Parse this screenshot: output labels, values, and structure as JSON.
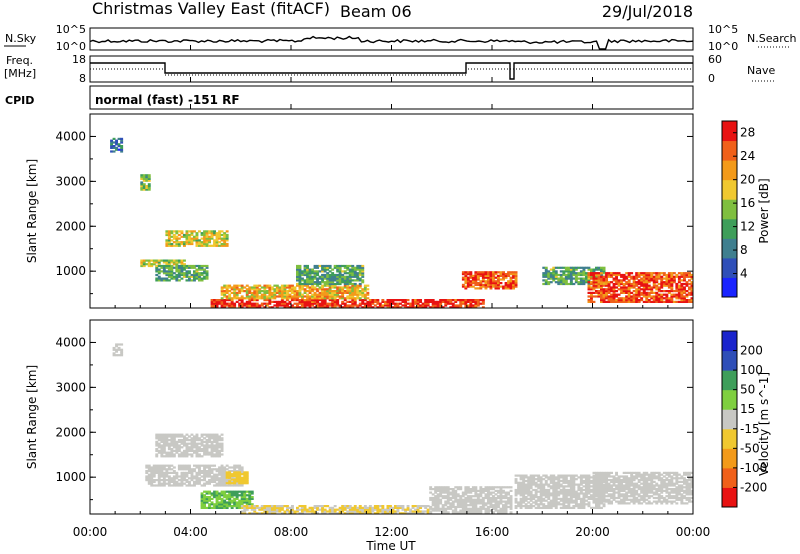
{
  "header": {
    "station": "Christmas Valley East (fitACF)",
    "beam": "Beam 06",
    "date": "29/Jul/2018"
  },
  "nsky": {
    "label": "N.Sky",
    "tick_top": "10^5",
    "tick_bottom": "10^0",
    "right_label": "N.Search",
    "right_tick_top": "10^5",
    "right_tick_bottom": "10^0"
  },
  "freq": {
    "label_top": "Freq.",
    "label_bottom": "[MHz]",
    "tick_top": "18",
    "tick_bottom": "8",
    "right_label": "Nave",
    "right_tick_top": "60",
    "right_tick_bottom": "0"
  },
  "cpid": {
    "label": "CPID",
    "mode": "normal (fast) -151 RF"
  },
  "xaxis": {
    "label": "Time UT",
    "ticks": [
      "00:00",
      "04:00",
      "08:00",
      "12:00",
      "16:00",
      "20:00",
      "00:00"
    ]
  },
  "colors": {
    "power": [
      "#1a24ff",
      "#2f4fb8",
      "#3f7f8f",
      "#3e9e5a",
      "#7fbf3f",
      "#f0c830",
      "#f39a1a",
      "#f0601a",
      "#e81212"
    ],
    "velocity": [
      "#e81212",
      "#f0601a",
      "#f39a1a",
      "#f0c830",
      "#c8c8c4",
      "#7fcf3f",
      "#3e9e5a",
      "#2f4fb8",
      "#1a24cc"
    ]
  },
  "chart_data": [
    {
      "type": "heatmap",
      "panel": "power",
      "ylabel": "Slant Range [km]",
      "xlabel": "",
      "yticks": [
        "1000",
        "2000",
        "3000",
        "4000"
      ],
      "ylim": [
        180,
        4500
      ],
      "xlim": [
        0,
        24
      ],
      "colorbar": {
        "label": "Power [dB]",
        "ticks": [
          "4",
          "8",
          "12",
          "16",
          "20",
          "24",
          "28"
        ],
        "range": [
          0,
          30
        ]
      },
      "patches": [
        {
          "t0": 2.0,
          "t1": 3.8,
          "r0": 1100,
          "r1": 1250,
          "level": 16
        },
        {
          "t0": 2.6,
          "t1": 4.6,
          "r0": 780,
          "r1": 1120,
          "level": 12
        },
        {
          "t0": 3.0,
          "t1": 5.4,
          "r0": 1550,
          "r1": 1900,
          "level": 18
        },
        {
          "t0": 4.8,
          "t1": 15.6,
          "r0": 180,
          "r1": 360,
          "level": 28
        },
        {
          "t0": 5.2,
          "t1": 11.0,
          "r0": 380,
          "r1": 700,
          "level": 20
        },
        {
          "t0": 8.2,
          "t1": 10.8,
          "r0": 700,
          "r1": 1120,
          "level": 12
        },
        {
          "t0": 14.8,
          "t1": 17.0,
          "r0": 600,
          "r1": 1000,
          "level": 26
        },
        {
          "t0": 18.0,
          "t1": 20.5,
          "r0": 700,
          "r1": 1100,
          "level": 12
        },
        {
          "t0": 19.8,
          "t1": 24.0,
          "r0": 300,
          "r1": 950,
          "level": 26
        },
        {
          "t0": 0.8,
          "t1": 1.3,
          "r0": 3650,
          "r1": 3950,
          "level": 8
        },
        {
          "t0": 2.0,
          "t1": 2.4,
          "r0": 2800,
          "r1": 3150,
          "level": 14
        }
      ]
    },
    {
      "type": "heatmap",
      "panel": "velocity",
      "ylabel": "Slant Range [km]",
      "xlabel": "Time UT",
      "yticks": [
        "1000",
        "2000",
        "3000",
        "4000"
      ],
      "ylim": [
        180,
        4500
      ],
      "xlim": [
        0,
        24
      ],
      "colorbar": {
        "label": "Velocity [m s^-1]",
        "ticks": [
          "-200",
          "-100",
          "-50",
          "-15",
          "15",
          "50",
          "100",
          "200"
        ],
        "range": [
          -250,
          250
        ]
      },
      "patches": [
        {
          "t0": 2.6,
          "t1": 5.2,
          "r0": 1450,
          "r1": 1950,
          "level": 0
        },
        {
          "t0": 2.2,
          "t1": 6.0,
          "r0": 800,
          "r1": 1250,
          "level": 0
        },
        {
          "t0": 4.4,
          "t1": 6.4,
          "r0": 300,
          "r1": 700,
          "level": 80
        },
        {
          "t0": 5.4,
          "t1": 6.2,
          "r0": 850,
          "r1": 1100,
          "level": -60
        },
        {
          "t0": 6.0,
          "t1": 13.5,
          "r0": 180,
          "r1": 380,
          "level": -30
        },
        {
          "t0": 13.5,
          "t1": 16.8,
          "r0": 200,
          "r1": 800,
          "level": 0
        },
        {
          "t0": 16.9,
          "t1": 20.5,
          "r0": 300,
          "r1": 1050,
          "level": 0
        },
        {
          "t0": 20.0,
          "t1": 24.0,
          "r0": 400,
          "r1": 1100,
          "level": 0
        },
        {
          "t0": 0.9,
          "t1": 1.3,
          "r0": 3700,
          "r1": 3950,
          "level": 0
        }
      ]
    }
  ]
}
